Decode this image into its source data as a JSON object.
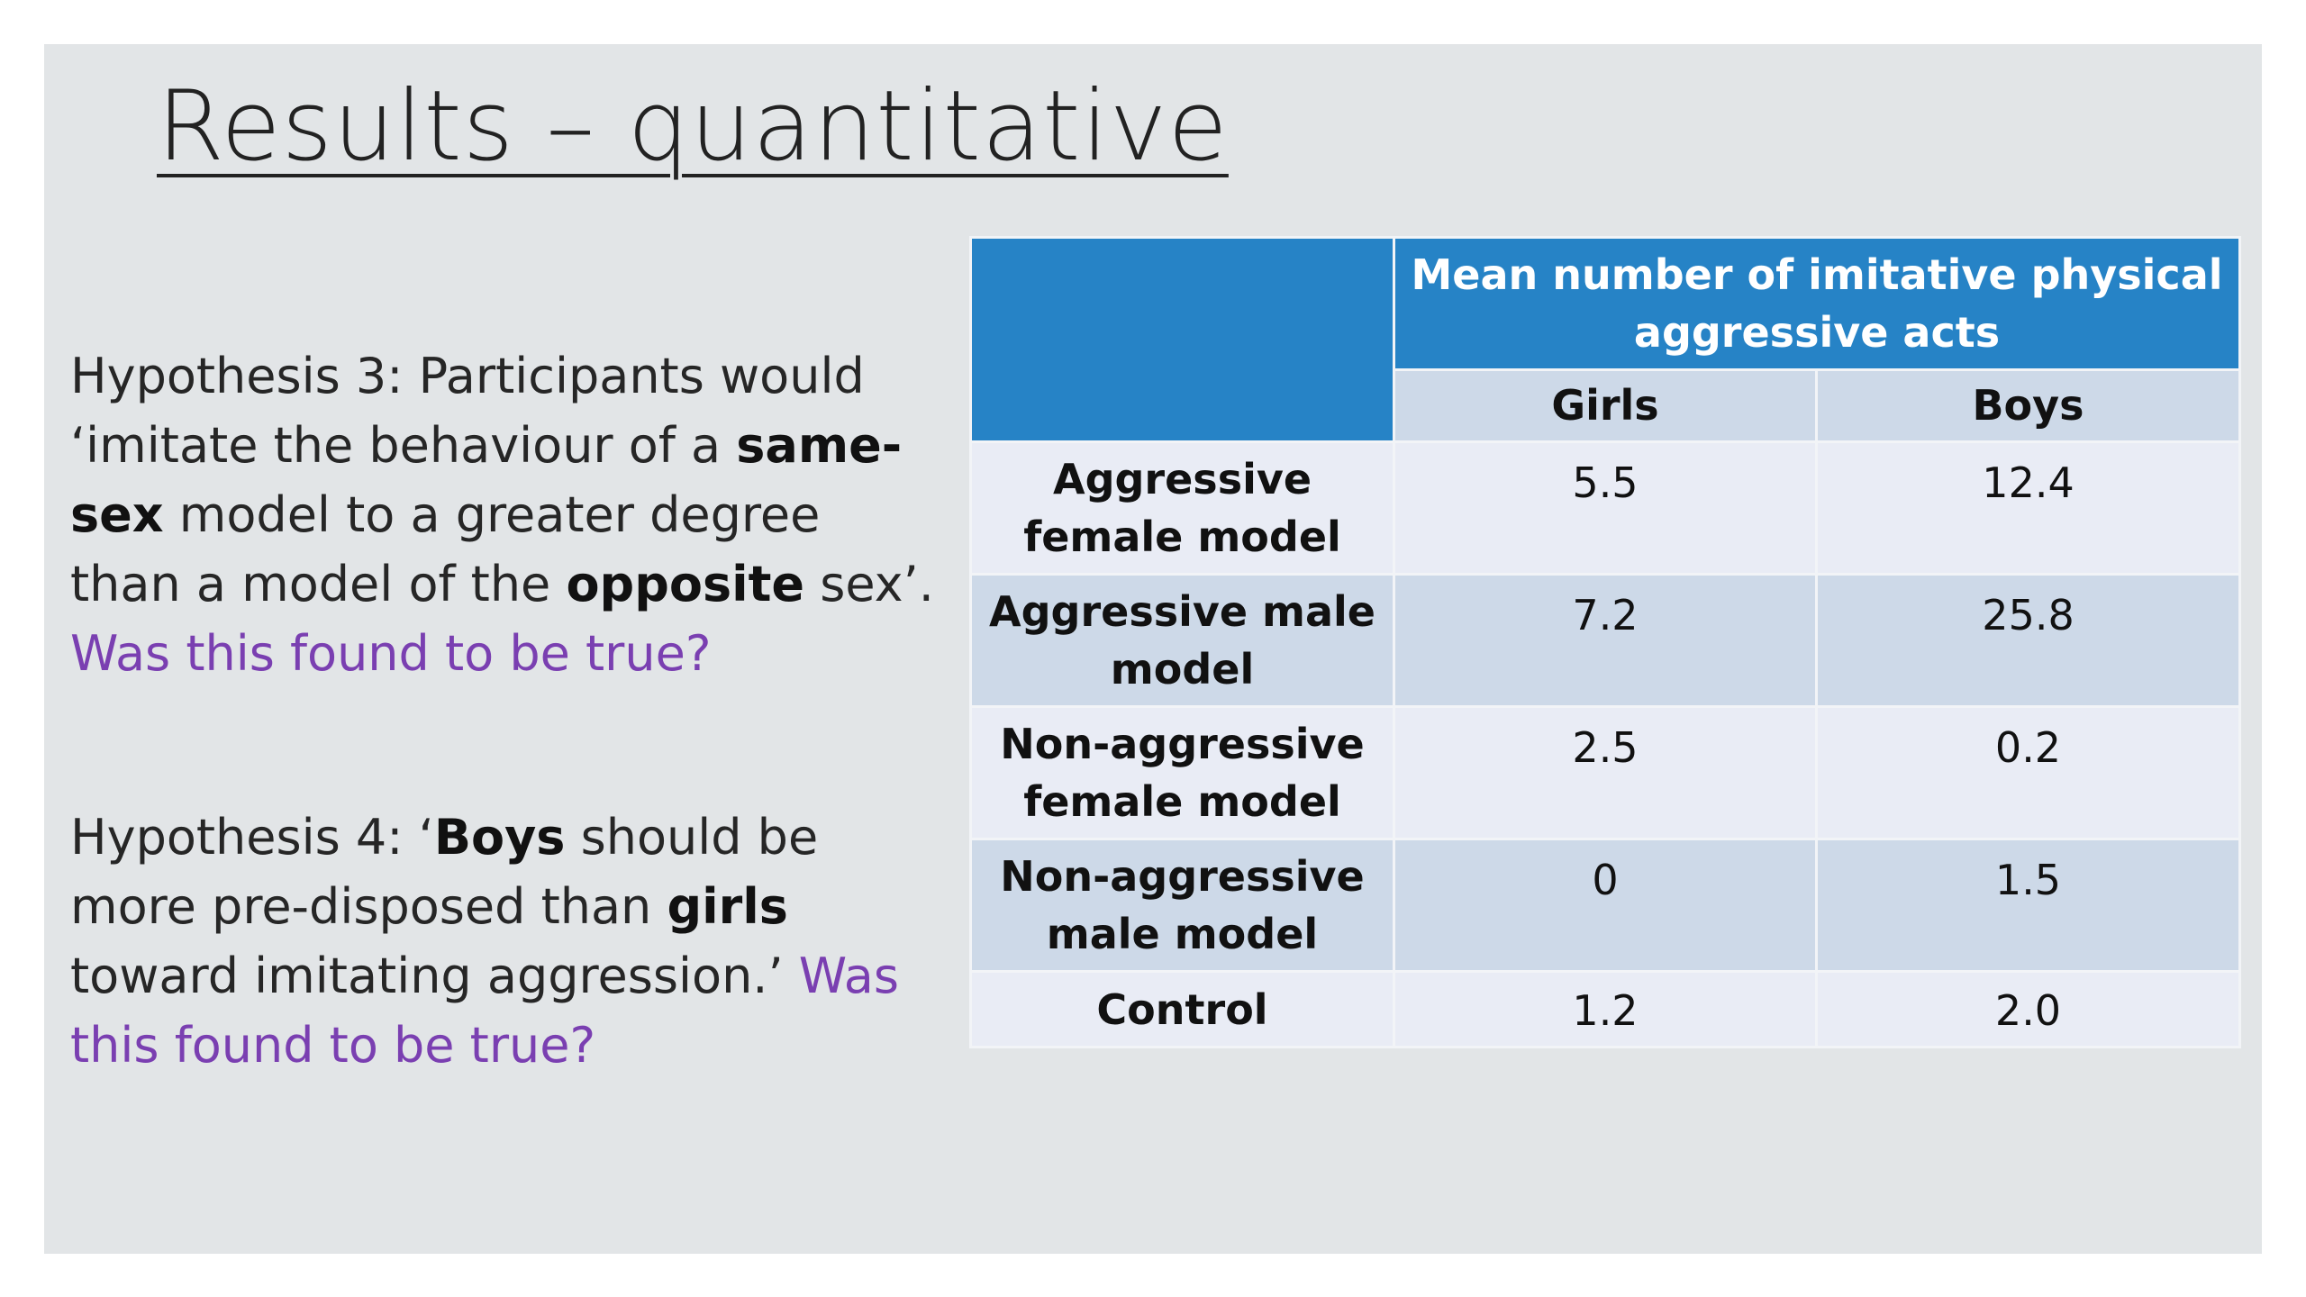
{
  "title": "Results – quantitative",
  "hypotheses": [
    {
      "segments": [
        {
          "text": "Hypothesis 3: Participants would ‘imitate the behaviour of a ",
          "style": "normal"
        },
        {
          "text": "same-sex",
          "style": "bold"
        },
        {
          "text": " model to a greater degree than a model of the ",
          "style": "normal"
        },
        {
          "text": "opposite",
          "style": "bold"
        },
        {
          "text": " sex’. ",
          "style": "normal"
        },
        {
          "text": "Was this found to be true?",
          "style": "question"
        }
      ]
    },
    {
      "segments": [
        {
          "text": "Hypothesis 4: ‘",
          "style": "normal"
        },
        {
          "text": "Boys",
          "style": "bold"
        },
        {
          "text": " should be more pre-disposed than ",
          "style": "normal"
        },
        {
          "text": "girls",
          "style": "bold"
        },
        {
          "text": " toward imitating aggression.’ ",
          "style": "normal"
        },
        {
          "text": "Was this found to be true?",
          "style": "question"
        }
      ]
    }
  ],
  "table": {
    "header": "Mean number of imitative physical aggressive acts",
    "columns": [
      "Girls",
      "Boys"
    ],
    "rows": [
      {
        "label": "Aggressive female model",
        "girls": "5.5",
        "boys": "12.4"
      },
      {
        "label": "Aggressive male model",
        "girls": "7.2",
        "boys": "25.8"
      },
      {
        "label": "Non-aggressive female model",
        "girls": "2.5",
        "boys": "0.2"
      },
      {
        "label": "Non-aggressive male model",
        "girls": "0",
        "boys": "1.5"
      },
      {
        "label": "Control",
        "girls": "1.2",
        "boys": "2.0"
      }
    ]
  },
  "colors": {
    "header_blue": "#2683c6",
    "question_purple": "#7a3fb1",
    "row_light": "#e9ecf5",
    "row_dark": "#cdd9e8"
  }
}
